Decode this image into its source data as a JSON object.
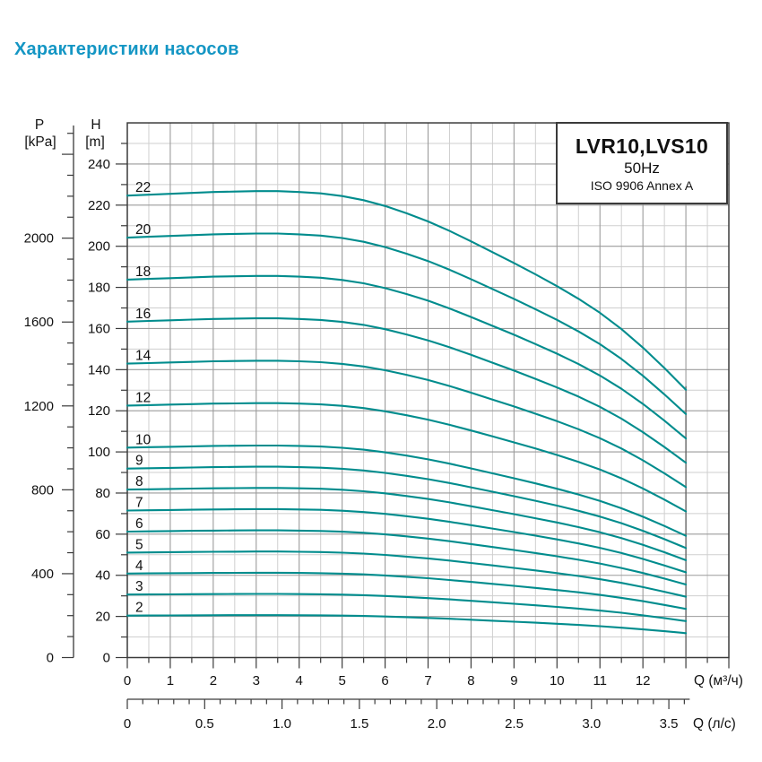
{
  "title": "Характеристики насосов",
  "colors": {
    "title_text": "#1496c4",
    "curve": "#008c8d",
    "grid_minor": "#cfcfcf",
    "grid_major": "#9b9b9b",
    "axis": "#3a3a3a",
    "text": "#111111"
  },
  "info_box": {
    "model": "LVR10,LVS10",
    "frequency": "50Hz",
    "standard": "ISO 9906 Annex A"
  },
  "chart_data": {
    "type": "line",
    "title": "LVR10,LVS10 50Hz ISO 9906 Annex A",
    "xlabel": "Q (м³/ч)",
    "xlabel_secondary": "Q (л/с)",
    "ylabel": "H [m]",
    "ylabel_secondary": "P [kPa]",
    "grid": "on",
    "pressure_axis": {
      "title": "P",
      "unit": "[kPa]",
      "min": 0,
      "max": 2500,
      "major_step": 400,
      "minor_step": 100,
      "labels": [
        0,
        400,
        800,
        1200,
        1600,
        2000
      ]
    },
    "head_axis": {
      "title": "H",
      "unit": "[m]",
      "min": 0,
      "max": 260,
      "major_step": 20,
      "minor_step": 10,
      "labels": [
        0,
        20,
        40,
        60,
        80,
        100,
        120,
        140,
        160,
        180,
        200,
        220,
        240
      ]
    },
    "flow_axis_m3h": {
      "label": "Q (м³/ч)",
      "min": 0,
      "max": 14,
      "major_step": 1,
      "minor_step": 0.5,
      "labels": [
        0,
        1,
        2,
        3,
        4,
        5,
        6,
        7,
        8,
        9,
        10,
        11,
        12
      ],
      "curves_end_at": 13
    },
    "flow_axis_ls": {
      "label": "Q (л/с)",
      "min": 0,
      "max": 3.6,
      "major_step": 0.5,
      "minor_step": 0.1,
      "labels": [
        "0",
        "0.5",
        "1.0",
        "1.5",
        "2.0",
        "2.5",
        "3.0",
        "3.5"
      ]
    },
    "x_m3h": [
      0,
      0.5,
      1,
      1.5,
      2,
      2.5,
      3,
      3.5,
      4,
      4.5,
      5,
      5.5,
      6,
      6.5,
      7,
      7.5,
      8,
      8.5,
      9,
      9.5,
      10,
      10.5,
      11,
      11.5,
      12,
      12.5,
      13
    ],
    "per_stage_head_m": [
      10.21,
      10.23,
      10.25,
      10.27,
      10.29,
      10.3,
      10.31,
      10.31,
      10.29,
      10.26,
      10.2,
      10.11,
      9.98,
      9.82,
      9.64,
      9.43,
      9.2,
      8.96,
      8.72,
      8.47,
      8.21,
      7.93,
      7.62,
      7.26,
      6.85,
      6.4,
      5.92
    ],
    "series_stages": [
      2,
      3,
      4,
      5,
      6,
      7,
      8,
      9,
      10,
      12,
      14,
      16,
      18,
      20,
      22
    ],
    "series_note": "head H(Q) of each curve = stage-count × per_stage_head_m"
  }
}
